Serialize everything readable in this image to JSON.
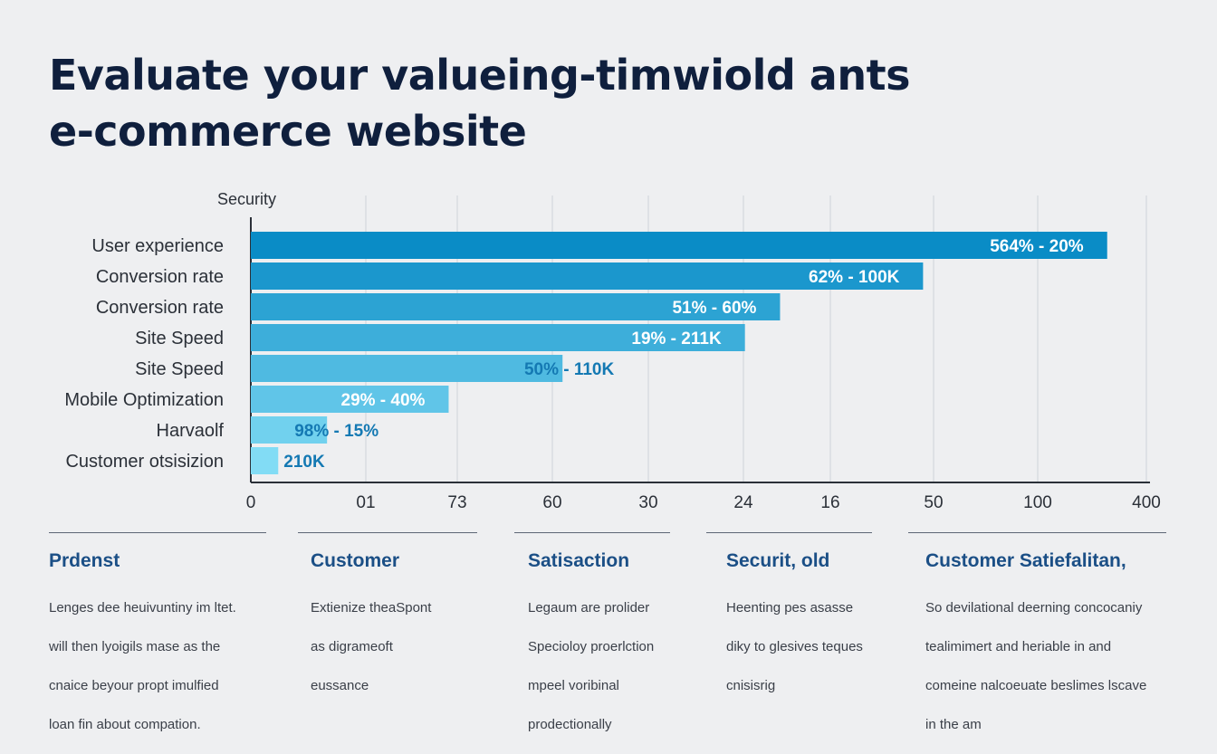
{
  "title_lines": [
    "Evaluate your valueing-timwiold ants",
    "e-commerce website"
  ],
  "colors": {
    "background": "#eeeff1",
    "title": "#0f1f3d",
    "heading": "#1b4f86",
    "body_text": "#3a3f48",
    "bar_dark": "#0a8cc6",
    "bar_light": "#82dcf5",
    "label_inside": "#ffffff",
    "label_outside": "#1479b3",
    "grid": "#cfd3d9",
    "axis": "#2b3038"
  },
  "chart_data": {
    "type": "bar",
    "orientation": "horizontal",
    "title": "",
    "category_axis_header": "Security",
    "categories": [
      "User experience",
      "Conversion rate",
      "Conversion rate",
      "Site Speed",
      "Site Speed",
      "Mobile Optimization",
      "Harvaolf",
      "Customer otsisizion"
    ],
    "values": [
      100,
      78.5,
      61.8,
      57.7,
      36.4,
      23.1,
      8.9,
      3.2
    ],
    "data_labels": [
      "564% - 20%",
      "62% - 100K",
      "51% - 60%",
      "19% - 211K",
      "50% - 110K",
      "29% - 40%",
      "98% - 15%",
      "210K"
    ],
    "label_position": [
      "inside",
      "inside",
      "inside",
      "inside",
      "mixed",
      "inside",
      "mixed",
      "outside"
    ],
    "x_tick_labels": [
      "0",
      "01",
      "73",
      "60",
      "30",
      "24",
      "16",
      "50",
      "100",
      "400"
    ],
    "xlim": [
      0,
      105
    ],
    "grid": true,
    "legend": "none"
  },
  "cards": [
    {
      "heading": "Prdenst",
      "body": [
        "Lenges dee heuivuntiny im ltet.",
        "will then lyoigils mase as the",
        "cnaice beyour propt imulfied",
        "loan fin about compation."
      ]
    },
    {
      "heading": "Customer",
      "body": [
        "Extienize theaSpont",
        "as digrameoft",
        "eussance"
      ]
    },
    {
      "heading": "Satisaction",
      "body": [
        "Legaum are prolider",
        "Specioloy proerlction",
        "mpeel voribinal",
        "prodectionally"
      ]
    },
    {
      "heading": "Securit, old",
      "body": [
        "Heenting pes asasse",
        "diky to glesives teques",
        "cnisisrig"
      ]
    },
    {
      "heading": "Customer Satiefalitan,",
      "body": [
        "So devilational deerning concocaniy",
        "tealimimert and heriable in and",
        "comeine nalcoeuate beslimes lscave",
        "in the am"
      ]
    }
  ]
}
